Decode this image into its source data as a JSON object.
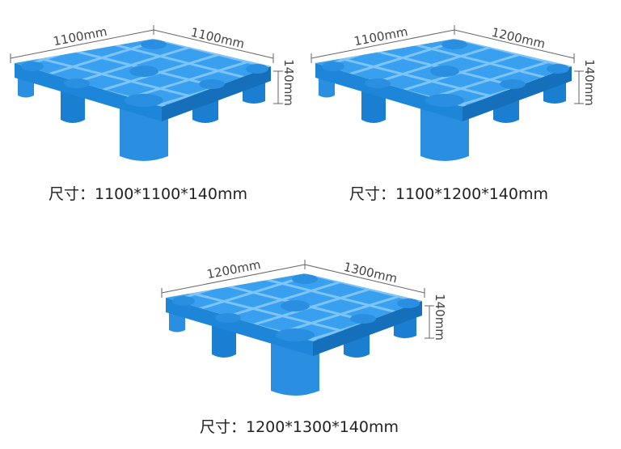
{
  "products": [
    {
      "left": "1100mm",
      "right": "1100mm",
      "height": "140mm",
      "caption": "尺寸：1100*1100*140mm"
    },
    {
      "left": "1100mm",
      "right": "1200mm",
      "height": "140mm",
      "caption": "尺寸：1100*1200*140mm"
    },
    {
      "left": "1200mm",
      "right": "1300mm",
      "height": "140mm",
      "caption": "尺寸：1200*1300*140mm"
    }
  ]
}
